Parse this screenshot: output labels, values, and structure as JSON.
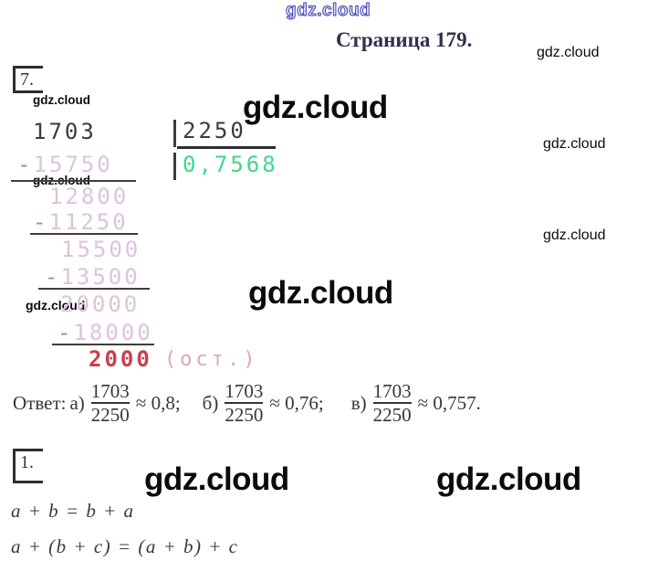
{
  "watermark": {
    "text": "gdz.cloud"
  },
  "page": {
    "title": "Страница 179."
  },
  "problem7": {
    "number": "7.",
    "division": {
      "dividend": "1703",
      "divisor": "2250",
      "quotient": "0,7568",
      "steps": [
        {
          "sign": "-",
          "value": "15750"
        },
        {
          "sign": "",
          "value": "12800"
        },
        {
          "sign": "-",
          "value": "11250"
        },
        {
          "sign": "",
          "value": "15500"
        },
        {
          "sign": "-",
          "value": "13500"
        },
        {
          "sign": "",
          "value": "20000"
        },
        {
          "sign": "-",
          "value": "18000"
        }
      ],
      "remainder": "2000",
      "remainder_label": "(ост.)"
    },
    "answer": {
      "prefix": "Ответ:",
      "parts": [
        {
          "label": "а)",
          "numerator": "1703",
          "denominator": "2250",
          "approx": "≈ 0,8;"
        },
        {
          "label": "б)",
          "numerator": "1703",
          "denominator": "2250",
          "approx": "≈ 0,76;"
        },
        {
          "label": "в)",
          "numerator": "1703",
          "denominator": "2250",
          "approx": "≈ 0,757."
        }
      ]
    }
  },
  "problem1": {
    "number": "1.",
    "formulas": {
      "commutative": "a + b = b + a",
      "associative": "a + (b + c) = (a + b) + c"
    }
  },
  "colors": {
    "quotient_green": "#3ed989",
    "step_pink": "#dcc3de",
    "minus_pink": "#c279b8",
    "remainder_red": "#c9404e",
    "title_navy": "#30304c",
    "watermark_blue": "#3c3cb4"
  }
}
